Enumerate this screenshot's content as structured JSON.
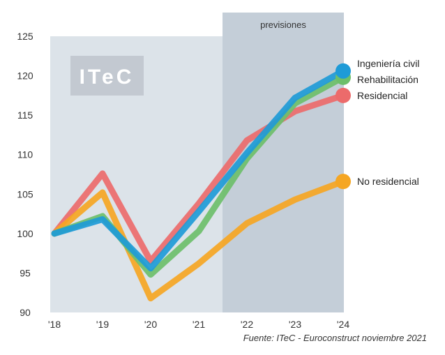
{
  "chart_data": {
    "type": "line",
    "x": [
      "'18",
      "'19",
      "'20",
      "'21",
      "'22",
      "'23",
      "'24"
    ],
    "ylim": [
      90,
      125
    ],
    "yticks": [
      90,
      95,
      100,
      105,
      110,
      115,
      120,
      125
    ],
    "grid": false,
    "forecast_label": "previsiones",
    "forecast_range": [
      "'22",
      "'24"
    ],
    "series": [
      {
        "name": "Residencial",
        "color": "#EC6B6B",
        "values": [
          100,
          107.6,
          96.5,
          103.8,
          111.8,
          115.5,
          117.5
        ]
      },
      {
        "name": "No residencial",
        "color": "#F5A623",
        "values": [
          100,
          105.2,
          91.8,
          96.2,
          101.3,
          104.3,
          106.6
        ]
      },
      {
        "name": "Rehabilitación",
        "color": "#6DBF6A",
        "values": [
          100,
          102.2,
          94.8,
          100.3,
          109.5,
          116.5,
          119.8
        ]
      },
      {
        "name": "Ingeniería civil",
        "color": "#1E9BD7",
        "values": [
          100,
          101.8,
          95.6,
          102.8,
          110.2,
          117.2,
          120.6
        ]
      }
    ],
    "legend_placement": "right"
  },
  "logo": {
    "text": "ITeC"
  },
  "source": "Fuente: ITeC - Euroconstruct noviembre 2021"
}
